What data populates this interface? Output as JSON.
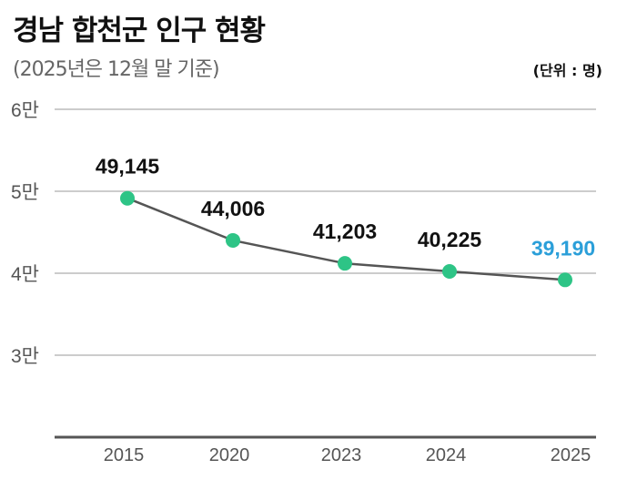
{
  "chart_data": {
    "type": "line",
    "title": "경남 합천군 인구 현황",
    "subtitle": "(2025년은 12월 말 기준)",
    "unit_label": "(단위 : 명)",
    "categories": [
      "2015",
      "2020",
      "2023",
      "2024",
      "2025"
    ],
    "values": [
      49145,
      44006,
      41203,
      40225,
      39190
    ],
    "value_labels": [
      "49,145",
      "44,006",
      "41,203",
      "40,225",
      "39,190"
    ],
    "ylim": [
      20000,
      60000
    ],
    "yticks": [
      {
        "value": 60000,
        "label": "6만"
      },
      {
        "value": 50000,
        "label": "5만"
      },
      {
        "value": 40000,
        "label": "4만"
      },
      {
        "value": 30000,
        "label": "3만"
      }
    ],
    "grid": true,
    "colors": {
      "line": "#555555",
      "marker": "#2ec486",
      "label": "#111111",
      "highlight_label": "#2b9fd9",
      "grid": "#bbbbbb",
      "axis": "#555555"
    }
  }
}
